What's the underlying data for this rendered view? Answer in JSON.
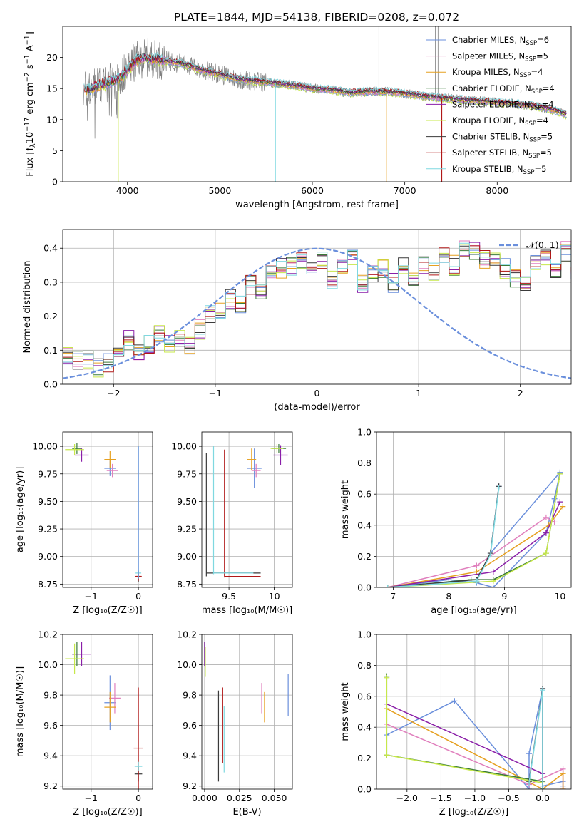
{
  "figure_title": "PLATE=1844, MJD=54138, FIBERID=0208, z=0.072",
  "colors": {
    "Chabrier MILES": "#6a8fdc",
    "Salpeter MILES": "#e07fbd",
    "Kroupa MILES": "#e6a020",
    "Chabrier ELODIE": "#3a7a3a",
    "Salpeter ELODIE": "#8a1ea8",
    "Kroupa ELODIE": "#c7e84a",
    "Chabrier STELIB": "#3a3a3a",
    "Salpeter STELIB": "#b01818",
    "Kroupa STELIB": "#7fd8e0",
    "normal_curve": "#6a8fdc",
    "data": "#808080"
  },
  "chart_data": [
    {
      "id": "spectrum",
      "type": "line",
      "xlabel": "wavelength [Angstrom, rest frame]",
      "ylabel_parts": [
        "Flux [f",
        "λ",
        "10",
        "−17",
        " erg cm",
        "−2",
        " s",
        "−1",
        " A",
        "−1",
        "]"
      ],
      "xlim": [
        3300,
        8800
      ],
      "ylim": [
        0,
        25
      ],
      "xticks": [
        4000,
        5000,
        6000,
        7000,
        8000
      ],
      "yticks": [
        0,
        5,
        10,
        15,
        20
      ],
      "legend_position": "top-right",
      "legend": [
        {
          "name": "Chabrier MILES",
          "nssp": "6"
        },
        {
          "name": "Salpeter MILES",
          "nssp": "5"
        },
        {
          "name": "Kroupa MILES",
          "nssp": "4"
        },
        {
          "name": "Chabrier ELODIE",
          "nssp": "4"
        },
        {
          "name": "Salpeter ELODIE",
          "nssp": "4"
        },
        {
          "name": "Kroupa ELODIE",
          "nssp": "4"
        },
        {
          "name": "Chabrier STELIB",
          "nssp": "5"
        },
        {
          "name": "Salpeter STELIB",
          "nssp": "5"
        },
        {
          "name": "Kroupa STELIB",
          "nssp": "5"
        }
      ],
      "continuum": {
        "x": [
          3500,
          3600,
          3700,
          3800,
          3900,
          4000,
          4100,
          4200,
          4400,
          4600,
          4800,
          5000,
          5200,
          5500,
          5800,
          6000,
          6200,
          6400,
          6600,
          6800,
          7000,
          7200,
          7400,
          7600,
          7800,
          8000,
          8200,
          8400,
          8600,
          8750
        ],
        "y": [
          14.5,
          15.0,
          15.5,
          16.0,
          16.5,
          18.0,
          19.5,
          20.0,
          19.5,
          19.0,
          18.0,
          17.3,
          16.5,
          16.0,
          15.5,
          15.0,
          14.8,
          14.3,
          14.5,
          14.5,
          14.2,
          13.8,
          13.5,
          13.2,
          13.0,
          12.8,
          12.5,
          12.2,
          11.6,
          10.8
        ]
      }
    },
    {
      "id": "residuals",
      "type": "step-histogram",
      "xlabel": "(data-model)/error",
      "ylabel": "Normed distribution",
      "xlim": [
        -2.5,
        2.5
      ],
      "ylim": [
        0,
        0.455
      ],
      "xticks": [
        -2,
        -1,
        0,
        1,
        2
      ],
      "yticks": [
        0.0,
        0.1,
        0.2,
        0.3,
        0.4
      ],
      "legend_position": "top-right",
      "curve_label": "𝒩(0, 1)",
      "bins_from": -2.5,
      "bin_width": 0.1,
      "base_heights": [
        0.08,
        0.07,
        0.07,
        0.05,
        0.06,
        0.08,
        0.13,
        0.09,
        0.12,
        0.15,
        0.12,
        0.13,
        0.11,
        0.16,
        0.21,
        0.22,
        0.25,
        0.24,
        0.29,
        0.27,
        0.32,
        0.34,
        0.35,
        0.36,
        0.35,
        0.37,
        0.31,
        0.34,
        0.37,
        0.3,
        0.33,
        0.34,
        0.3,
        0.35,
        0.31,
        0.35,
        0.33,
        0.38,
        0.35,
        0.4,
        0.39,
        0.37,
        0.36,
        0.34,
        0.31,
        0.29,
        0.36,
        0.38,
        0.34,
        0.39,
        0.34,
        0.33,
        0.3,
        0.28,
        0.27,
        0.26,
        0.3,
        0.24,
        0.22,
        0.23,
        0.22,
        0.2,
        0.19,
        0.15,
        0.18,
        0.14,
        0.16,
        0.13,
        0.13,
        0.12,
        0.1,
        0.11,
        0.09,
        0.09,
        0.08,
        0.06,
        0.05,
        0.05,
        0.04,
        0.05,
        0.03,
        0.03,
        0.03,
        0.04,
        0.02,
        0.02,
        0.03,
        0.03,
        0.02,
        0.02
      ]
    },
    {
      "id": "age_vs_Z",
      "type": "errorbar",
      "xlabel": "Z [log₁₀(Z/Z☉)]",
      "ylabel": "age  [log₁₀(age/yr)]",
      "xlim": [
        -1.6,
        0.3
      ],
      "ylim": [
        8.72,
        10.13
      ],
      "xticks": [
        -1,
        0
      ],
      "yticks": [
        8.75,
        9.0,
        9.25,
        9.5,
        9.75,
        10.0
      ],
      "points": [
        {
          "series": "Chabrier MILES",
          "x": -0.6,
          "y": 9.8,
          "xerr": 0.12,
          "yerr": 0.07
        },
        {
          "series": "Salpeter MILES",
          "x": -0.55,
          "y": 9.78,
          "xerr": 0.12,
          "yerr": 0.06
        },
        {
          "series": "Kroupa MILES",
          "x": -0.6,
          "y": 9.88,
          "xerr": 0.12,
          "yerr": 0.08
        },
        {
          "series": "Chabrier ELODIE",
          "x": -1.3,
          "y": 9.98,
          "xerr": 0.1,
          "yerr": 0.05
        },
        {
          "series": "Salpeter ELODIE",
          "x": -1.2,
          "y": 9.92,
          "xerr": 0.15,
          "yerr": 0.06
        },
        {
          "series": "Kroupa ELODIE",
          "x": -1.35,
          "y": 9.97,
          "xerr": 0.2,
          "yerr": 0.05
        },
        {
          "series": "Chabrier STELIB",
          "x": 0.0,
          "y": 8.82,
          "xerr": 0.05,
          "yerr": 0.05
        },
        {
          "series": "Salpeter STELIB",
          "x": 0.0,
          "y": 8.82,
          "xerr": 0.07,
          "yerr": 0.04
        },
        {
          "series": "Kroupa STELIB",
          "x": 0.0,
          "y": 8.85,
          "xerr": 0.06,
          "yerr": 0.03
        },
        {
          "series": "Kroupa STELIB",
          "x": 0.0,
          "y": 9.4,
          "xerr": 0.0,
          "yerr": 0.6
        },
        {
          "series": "Chabrier MILES",
          "x": 0.0,
          "y": 9.4,
          "xerr": 0.0,
          "yerr": 0.6
        }
      ]
    },
    {
      "id": "age_vs_mass",
      "type": "errorbar",
      "xlabel": "mass [log₁₀(M/M☉)]",
      "xlim": [
        9.2,
        10.2
      ],
      "ylim": [
        8.72,
        10.13
      ],
      "xticks": [
        9.5,
        10.0
      ],
      "yticks": [
        8.75,
        9.0,
        9.25,
        9.5,
        9.75,
        10.0
      ],
      "points": [
        {
          "series": "Chabrier MILES",
          "x": 9.78,
          "y": 9.8,
          "xerr": 0.08,
          "yerr": 0.18
        },
        {
          "series": "Salpeter MILES",
          "x": 9.8,
          "y": 9.78,
          "xerr": 0.05,
          "yerr": 0.06
        },
        {
          "series": "Kroupa MILES",
          "x": 9.75,
          "y": 9.88,
          "xerr": 0.05,
          "yerr": 0.1
        },
        {
          "series": "Chabrier ELODIE",
          "x": 10.05,
          "y": 9.98,
          "xerr": 0.08,
          "yerr": 0.04
        },
        {
          "series": "Salpeter ELODIE",
          "x": 10.07,
          "y": 9.92,
          "xerr": 0.08,
          "yerr": 0.09
        },
        {
          "series": "Kroupa ELODIE",
          "x": 10.03,
          "y": 9.98,
          "xerr": 0.07,
          "yerr": 0.04
        },
        {
          "series": "Chabrier STELIB",
          "x": 9.25,
          "y": 9.38,
          "xerr": 0.0,
          "yerr": 0.56
        },
        {
          "series": "Chabrier STELIB",
          "x": 9.55,
          "y": 8.85,
          "xerr": 0.3,
          "yerr": 0.0
        },
        {
          "series": "Salpeter STELIB",
          "x": 9.45,
          "y": 9.39,
          "xerr": 0.0,
          "yerr": 0.58
        },
        {
          "series": "Salpeter STELIB",
          "x": 9.65,
          "y": 8.82,
          "xerr": 0.2,
          "yerr": 0.0
        },
        {
          "series": "Kroupa STELIB",
          "x": 9.33,
          "y": 9.42,
          "xerr": 0.0,
          "yerr": 0.58
        },
        {
          "series": "Kroupa STELIB",
          "x": 9.55,
          "y": 8.85,
          "xerr": 0.22,
          "yerr": 0.0
        }
      ]
    },
    {
      "id": "weight_vs_age",
      "type": "line",
      "xlabel": "age  [log₁₀(age/yr)]",
      "ylabel": "mass weight",
      "xlim": [
        6.7,
        10.2
      ],
      "ylim": [
        0,
        1.0
      ],
      "xticks": [
        7,
        8,
        9,
        10
      ],
      "yticks": [
        0.0,
        0.2,
        0.4,
        0.6,
        0.8,
        1.0
      ],
      "series": [
        {
          "name": "Chabrier MILES",
          "x": [
            6.9,
            8.0,
            8.5,
            8.8,
            9.75,
            9.9,
            10.0,
            8.75,
            8.9
          ],
          "y": [
            0.0,
            0.05,
            0.03,
            0.0,
            0.35,
            0.57,
            0.74,
            0.22,
            0.65
          ]
        },
        {
          "name": "Salpeter MILES",
          "x": [
            6.9,
            8.5,
            9.75,
            9.9
          ],
          "y": [
            0.0,
            0.14,
            0.45,
            0.42
          ]
        },
        {
          "name": "Kroupa MILES",
          "x": [
            6.9,
            8.5,
            9.8,
            10.05
          ],
          "y": [
            0.0,
            0.1,
            0.4,
            0.52
          ]
        },
        {
          "name": "Chabrier ELODIE",
          "x": [
            6.9,
            8.4,
            8.8,
            9.75,
            10.0
          ],
          "y": [
            0.0,
            0.05,
            0.05,
            0.22,
            0.73
          ]
        },
        {
          "name": "Salpeter ELODIE",
          "x": [
            6.9,
            8.8,
            9.75,
            10.0
          ],
          "y": [
            0.0,
            0.1,
            0.35,
            0.55
          ]
        },
        {
          "name": "Kroupa ELODIE",
          "x": [
            6.9,
            8.8,
            9.75,
            10.0
          ],
          "y": [
            0.0,
            0.04,
            0.22,
            0.73
          ]
        },
        {
          "name": "Chabrier STELIB",
          "x": [
            6.9,
            8.5,
            8.75,
            8.9
          ],
          "y": [
            0.0,
            0.05,
            0.22,
            0.65
          ]
        },
        {
          "name": "Kroupa STELIB",
          "x": [
            6.9,
            8.5,
            8.75,
            8.9
          ],
          "y": [
            0.0,
            0.04,
            0.21,
            0.64
          ]
        }
      ]
    },
    {
      "id": "mass_vs_Z",
      "type": "errorbar",
      "xlabel": "Z [log₁₀(Z/Z☉)]",
      "ylabel": "mass [log₁₀(M/M☉)]",
      "xlim": [
        -1.6,
        0.3
      ],
      "ylim": [
        9.18,
        10.2
      ],
      "xticks": [
        -1,
        0
      ],
      "yticks": [
        9.2,
        9.4,
        9.6,
        9.8,
        10.0,
        10.2
      ],
      "points": [
        {
          "series": "Chabrier MILES",
          "x": -0.6,
          "y": 9.75,
          "xerr": 0.12,
          "yerr": 0.18
        },
        {
          "series": "Salpeter MILES",
          "x": -0.5,
          "y": 9.78,
          "xerr": 0.12,
          "yerr": 0.1
        },
        {
          "series": "Kroupa MILES",
          "x": -0.6,
          "y": 9.72,
          "xerr": 0.12,
          "yerr": 0.1
        },
        {
          "series": "Chabrier ELODIE",
          "x": -1.3,
          "y": 10.07,
          "xerr": 0.1,
          "yerr": 0.08
        },
        {
          "series": "Salpeter ELODIE",
          "x": -1.2,
          "y": 10.07,
          "xerr": 0.2,
          "yerr": 0.08
        },
        {
          "series": "Kroupa ELODIE",
          "x": -1.35,
          "y": 10.04,
          "xerr": 0.2,
          "yerr": 0.1
        },
        {
          "series": "Chabrier STELIB",
          "x": 0.0,
          "y": 9.28,
          "xerr": 0.08,
          "yerr": 0.05
        },
        {
          "series": "Salpeter STELIB",
          "x": 0.0,
          "y": 9.45,
          "xerr": 0.1,
          "yerr": 0.4
        },
        {
          "series": "Kroupa STELIB",
          "x": 0.0,
          "y": 9.33,
          "xerr": 0.08,
          "yerr": 0.03
        }
      ]
    },
    {
      "id": "mass_vs_EBV",
      "type": "errorbar",
      "xlabel": "E(B-V)",
      "xlim": [
        -0.002,
        0.063
      ],
      "ylim": [
        9.18,
        10.2
      ],
      "xticks": [
        0.0,
        0.025,
        0.05
      ],
      "xtick_labels": [
        "0.000",
        "0.025",
        "0.050"
      ],
      "yticks": [
        9.2,
        9.4,
        9.6,
        9.8,
        10.0,
        10.2
      ],
      "points": [
        {
          "series": "Chabrier MILES",
          "x": 0.06,
          "y": 9.8,
          "xerr": 0.0,
          "yerr": 0.14
        },
        {
          "series": "Salpeter MILES",
          "x": 0.041,
          "y": 9.78,
          "xerr": 0.0,
          "yerr": 0.1
        },
        {
          "series": "Kroupa MILES",
          "x": 0.043,
          "y": 9.72,
          "xerr": 0.0,
          "yerr": 0.1
        },
        {
          "series": "Chabrier ELODIE",
          "x": 0.0,
          "y": 10.07,
          "xerr": 0.0,
          "yerr": 0.08
        },
        {
          "series": "Salpeter ELODIE",
          "x": 0.0,
          "y": 10.07,
          "xerr": 0.0,
          "yerr": 0.08
        },
        {
          "series": "Kroupa ELODIE",
          "x": 0.0005,
          "y": 10.02,
          "xerr": 0.0,
          "yerr": 0.1
        },
        {
          "series": "Chabrier STELIB",
          "x": 0.01,
          "y": 9.53,
          "xerr": 0.0,
          "yerr": 0.3
        },
        {
          "series": "Salpeter STELIB",
          "x": 0.013,
          "y": 9.6,
          "xerr": 0.0,
          "yerr": 0.25
        },
        {
          "series": "Kroupa STELIB",
          "x": 0.014,
          "y": 9.51,
          "xerr": 0.0,
          "yerr": 0.22
        }
      ]
    },
    {
      "id": "weight_vs_Z",
      "type": "line",
      "xlabel": "Z [log₁₀(Z/Z☉)]",
      "ylabel": "mass weight",
      "xlim": [
        -2.45,
        0.42
      ],
      "ylim": [
        0,
        1.0
      ],
      "xticks": [
        -2.0,
        -1.5,
        -1.0,
        -0.5,
        0.0
      ],
      "xtick_labels": [
        "−2.0",
        "−1.5",
        "−1.0",
        "−0.5",
        "0.0"
      ],
      "yticks": [
        0.0,
        0.2,
        0.4,
        0.6,
        0.8,
        1.0
      ],
      "series": [
        {
          "name": "Chabrier MILES",
          "x": [
            -2.3,
            -1.3,
            -0.2,
            -0.2,
            0.0,
            0.0,
            0.3,
            0.3
          ],
          "y": [
            0.35,
            0.57,
            0.0,
            0.23,
            0.65,
            0.02,
            0.05,
            0.02
          ]
        },
        {
          "name": "Salpeter MILES",
          "x": [
            -2.3,
            -0.2,
            0.3,
            0.3
          ],
          "y": [
            0.42,
            0.03,
            0.13,
            0.0
          ]
        },
        {
          "name": "Kroupa MILES",
          "x": [
            -2.3,
            0.0,
            0.3,
            0.3
          ],
          "y": [
            0.52,
            0.0,
            0.1,
            0.0
          ]
        },
        {
          "name": "Chabrier ELODIE",
          "x": [
            -2.3,
            -2.3,
            0.0,
            0.0
          ],
          "y": [
            0.73,
            0.22,
            0.05,
            0.0
          ]
        },
        {
          "name": "Salpeter ELODIE",
          "x": [
            -2.3,
            0.0
          ],
          "y": [
            0.55,
            0.1
          ]
        },
        {
          "name": "Kroupa ELODIE",
          "x": [
            -2.3,
            -2.3,
            0.0
          ],
          "y": [
            0.72,
            0.22,
            0.04
          ]
        },
        {
          "name": "Chabrier STELIB",
          "x": [
            -0.2,
            0.0,
            0.0
          ],
          "y": [
            0.05,
            0.65,
            0.0
          ]
        },
        {
          "name": "Kroupa STELIB",
          "x": [
            -0.2,
            0.0,
            0.0
          ],
          "y": [
            0.04,
            0.64,
            0.0
          ]
        }
      ]
    }
  ]
}
